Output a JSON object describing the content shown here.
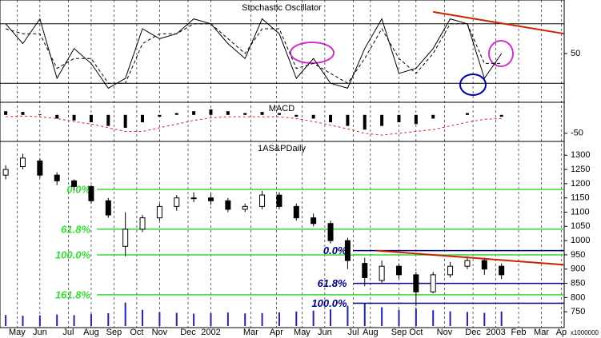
{
  "chart_data": [
    {
      "type": "line",
      "title": "Stochastic Oscillator",
      "x": [
        1,
        4,
        7,
        10,
        13,
        16,
        19,
        22,
        25,
        28,
        31,
        34,
        37,
        40,
        43,
        46,
        49,
        52,
        55,
        58,
        61,
        64,
        67,
        70,
        73,
        76,
        79,
        82,
        85,
        88
      ],
      "series": [
        {
          "name": "%K",
          "color": "#000000",
          "values": [
            80,
            60,
            85,
            25,
            55,
            40,
            15,
            25,
            75,
            65,
            70,
            85,
            80,
            60,
            45,
            85,
            70,
            25,
            45,
            20,
            15,
            55,
            85,
            30,
            35,
            55,
            85,
            80,
            25,
            50
          ]
        },
        {
          "name": "%D",
          "color": "#000000",
          "values": [
            75,
            70,
            70,
            35,
            45,
            45,
            20,
            20,
            60,
            70,
            70,
            80,
            80,
            65,
            50,
            75,
            75,
            35,
            40,
            30,
            20,
            45,
            75,
            45,
            30,
            50,
            80,
            80,
            40,
            40
          ]
        }
      ],
      "levels": [
        80,
        20
      ],
      "trendline": {
        "x": [
          76,
          99
        ],
        "y": [
          92,
          70
        ],
        "color": "#cc2200"
      },
      "ylim": [
        0,
        100
      ],
      "yticks": [
        50
      ]
    },
    {
      "type": "macd",
      "title": "MACD",
      "x": [
        1,
        4,
        7,
        10,
        13,
        16,
        19,
        22,
        25,
        28,
        31,
        34,
        37,
        40,
        43,
        46,
        49,
        52,
        55,
        58,
        61,
        64,
        67,
        70,
        73,
        76,
        79,
        82,
        85,
        88
      ],
      "series": [
        {
          "name": "Histogram",
          "color": "#000000",
          "values": [
            10,
            8,
            2,
            -10,
            -15,
            -20,
            -30,
            -35,
            -20,
            -5,
            5,
            10,
            15,
            10,
            5,
            8,
            5,
            -5,
            -10,
            -20,
            -30,
            -40,
            -30,
            -20,
            -25,
            -10,
            0,
            5,
            0,
            -5
          ]
        },
        {
          "name": "Signal",
          "color": "#dd2222",
          "values": [
            -5,
            -3,
            -5,
            -10,
            -18,
            -25,
            -35,
            -45,
            -45,
            -35,
            -25,
            -15,
            -8,
            -5,
            -5,
            -5,
            -5,
            -10,
            -18,
            -28,
            -38,
            -50,
            -55,
            -50,
            -45,
            -40,
            -30,
            -20,
            -12,
            -10
          ]
        }
      ],
      "ylim": [
        -70,
        30
      ],
      "yticks": [
        -50
      ]
    },
    {
      "type": "candlestick",
      "title": "1AS&PDaily",
      "x": [
        1,
        4,
        7,
        10,
        13,
        16,
        19,
        22,
        25,
        28,
        31,
        34,
        37,
        40,
        43,
        46,
        49,
        52,
        55,
        58,
        61,
        64,
        67,
        70,
        73,
        76,
        79,
        82,
        85,
        88
      ],
      "open": [
        1230,
        1260,
        1280,
        1230,
        1210,
        1190,
        1140,
        980,
        1040,
        1080,
        1120,
        1150,
        1150,
        1140,
        1110,
        1120,
        1160,
        1120,
        1080,
        1060,
        1000,
        920,
        860,
        910,
        880,
        820,
        880,
        910,
        930,
        910
      ],
      "high": [
        1265,
        1305,
        1290,
        1240,
        1215,
        1195,
        1150,
        1100,
        1090,
        1130,
        1160,
        1170,
        1165,
        1150,
        1130,
        1175,
        1170,
        1130,
        1095,
        1070,
        1010,
        940,
        930,
        920,
        890,
        890,
        925,
        945,
        940,
        920
      ],
      "low": [
        1215,
        1250,
        1220,
        1195,
        1175,
        1130,
        1080,
        945,
        1030,
        1070,
        1105,
        1135,
        1125,
        1100,
        1100,
        1110,
        1110,
        1070,
        1050,
        990,
        900,
        840,
        850,
        865,
        770,
        815,
        870,
        900,
        880,
        865
      ],
      "close": [
        1250,
        1290,
        1230,
        1210,
        1190,
        1140,
        1090,
        1040,
        1080,
        1120,
        1150,
        1150,
        1140,
        1110,
        1120,
        1160,
        1120,
        1080,
        1060,
        1000,
        930,
        870,
        910,
        880,
        820,
        880,
        910,
        930,
        900,
        880
      ],
      "volume": [
        5200,
        4800,
        5000,
        5400,
        5100,
        5600,
        6000,
        11000,
        7600,
        6500,
        6200,
        5800,
        6000,
        6300,
        5900,
        6100,
        6400,
        6800,
        7200,
        7800,
        9500,
        10500,
        8800,
        7600,
        8200,
        7400,
        6900,
        6600,
        6200,
        6800
      ],
      "volume_label": "x1000000",
      "vlim": [
        0,
        12000
      ],
      "fib_sets": [
        {
          "color": "#33dd33",
          "label_color": "#33dd33",
          "x": [
            17,
            99
          ],
          "levels": [
            1180,
            1040,
            950,
            810
          ],
          "labels": [
            "0.0%",
            "61.8%",
            "100.0%",
            "161.8%"
          ]
        },
        {
          "color": "#000080",
          "label_color": "#000080",
          "x": [
            62,
            99
          ],
          "levels": [
            965,
            850,
            780
          ],
          "labels": [
            "0.0%",
            "61.8%",
            "100.0%"
          ]
        }
      ],
      "trendline": {
        "x": [
          66,
          99
        ],
        "y": [
          965,
          915
        ],
        "color": "#cc2200"
      },
      "ylim": [
        700,
        1340
      ],
      "yticks": [
        750,
        800,
        850,
        900,
        950,
        1000,
        1050,
        1100,
        1150,
        1200,
        1250,
        1300
      ]
    },
    {
      "type": "xaxis",
      "xlim": [
        0,
        99
      ],
      "xticks": [
        {
          "value": 3,
          "label": "May"
        },
        {
          "value": 7,
          "label": "Jun"
        },
        {
          "value": 12,
          "label": "Jul"
        },
        {
          "value": 16,
          "label": "Aug"
        },
        {
          "value": 20,
          "label": "Sep"
        },
        {
          "value": 24,
          "label": "Oct"
        },
        {
          "value": 28,
          "label": "Nov"
        },
        {
          "value": 33,
          "label": "Dec"
        },
        {
          "value": 37,
          "label": "2002"
        },
        {
          "value": 44,
          "label": "Mar"
        },
        {
          "value": 48.5,
          "label": "Apr"
        },
        {
          "value": 53,
          "label": "May"
        },
        {
          "value": 57,
          "label": "Jun"
        },
        {
          "value": 62,
          "label": "Jul"
        },
        {
          "value": 65,
          "label": "Aug"
        },
        {
          "value": 70,
          "label": "Sep"
        },
        {
          "value": 73,
          "label": "Oct"
        },
        {
          "value": 78,
          "label": "Nov"
        },
        {
          "value": 83,
          "label": "Dec"
        },
        {
          "value": 87,
          "label": "2003"
        },
        {
          "value": 91,
          "label": "Feb"
        },
        {
          "value": 95,
          "label": "Mar"
        },
        {
          "value": 98.5,
          "label": "Ap"
        }
      ]
    }
  ]
}
